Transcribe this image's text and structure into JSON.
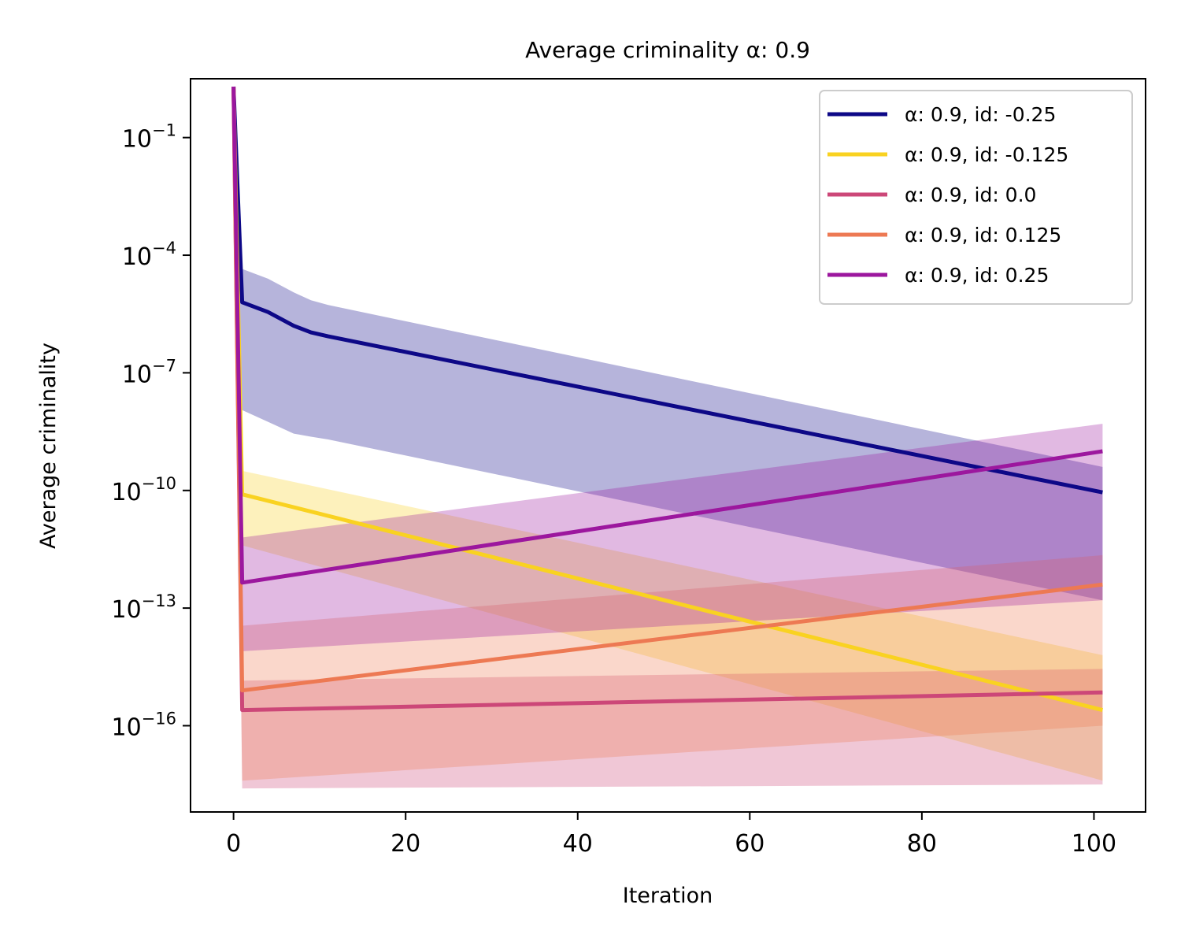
{
  "chart_data": {
    "type": "line",
    "title": "Average criminality α: 0.9",
    "xlabel": "Iteration",
    "ylabel": "Average criminality",
    "xlim": [
      -5,
      106
    ],
    "ylim_log10": [
      -18.2,
      0.5
    ],
    "yscale": "log",
    "grid": false,
    "legend_position": "top-right",
    "xticks": [
      0,
      20,
      40,
      60,
      80,
      100
    ],
    "xtick_labels": [
      "0",
      "20",
      "40",
      "60",
      "80",
      "100"
    ],
    "yticks_log10": [
      -1,
      -4,
      -7,
      -10,
      -13,
      -16
    ],
    "ytick_labels": [
      {
        "base": "10",
        "exp": "−1"
      },
      {
        "base": "10",
        "exp": "−4"
      },
      {
        "base": "10",
        "exp": "−7"
      },
      {
        "base": "10",
        "exp": "−10"
      },
      {
        "base": "10",
        "exp": "−13"
      },
      {
        "base": "10",
        "exp": "−16"
      }
    ],
    "series": [
      {
        "name": "α: 0.9, id: -0.25",
        "color": "#0d0887",
        "band_alpha": 0.3,
        "x": [
          0,
          1,
          4,
          7,
          9,
          11,
          101
        ],
        "log10_y": [
          0.3,
          -5.2,
          -5.45,
          -5.8,
          -5.97,
          -6.07,
          -10.05
        ],
        "band_upper_log10": [
          0.3,
          -4.35,
          -4.6,
          -4.95,
          -5.15,
          -5.27,
          -9.4
        ],
        "band_lower_log10": [
          0.3,
          -7.95,
          -8.25,
          -8.55,
          -8.63,
          -8.7,
          -12.8
        ]
      },
      {
        "name": "α: 0.9, id: -0.125",
        "color": "#f9d221",
        "band_alpha": 0.3,
        "x": [
          0,
          1,
          101
        ],
        "log10_y": [
          0.3,
          -10.1,
          -15.6
        ],
        "band_upper_log10": [
          0.3,
          -9.5,
          -14.2
        ],
        "band_lower_log10": [
          0.3,
          -11.4,
          -17.4
        ]
      },
      {
        "name": "α: 0.9, id: 0.0",
        "color": "#cc4778",
        "band_alpha": 0.3,
        "x": [
          0,
          1,
          101
        ],
        "log10_y": [
          0.3,
          -15.6,
          -15.15
        ],
        "band_upper_log10": [
          0.3,
          -14.85,
          -14.55
        ],
        "band_lower_log10": [
          0.3,
          -17.6,
          -17.5
        ]
      },
      {
        "name": "α: 0.9, id: 0.125",
        "color": "#ed7953",
        "band_alpha": 0.3,
        "x": [
          0,
          1,
          101
        ],
        "log10_y": [
          0.3,
          -15.1,
          -12.4
        ],
        "band_upper_log10": [
          0.3,
          -13.45,
          -11.65
        ],
        "band_lower_log10": [
          0.3,
          -17.4,
          -16.0
        ]
      },
      {
        "name": "α: 0.9, id: 0.25",
        "color": "#9c179e",
        "band_alpha": 0.3,
        "x": [
          0,
          1,
          101
        ],
        "log10_y": [
          0.3,
          -12.35,
          -9.0
        ],
        "band_upper_log10": [
          0.3,
          -11.2,
          -8.3
        ],
        "band_lower_log10": [
          0.3,
          -14.1,
          -12.8
        ]
      }
    ]
  }
}
